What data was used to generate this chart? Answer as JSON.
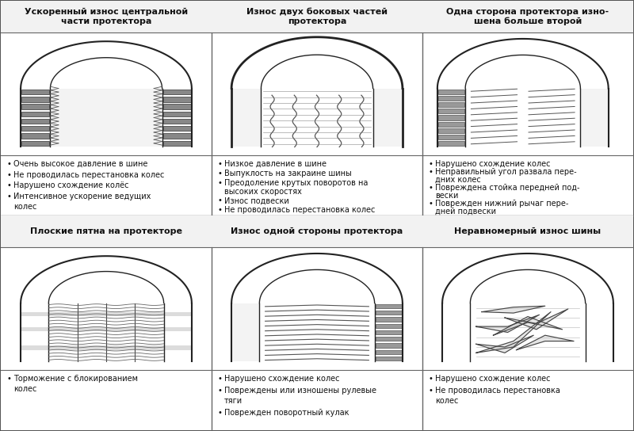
{
  "bg_color": "#e8e8e8",
  "cell_bg": "#ffffff",
  "border_color": "#666666",
  "headers": [
    "Ускоренный износ центральной\nчасти протектора",
    "Износ двух боковых частей\nпротектора",
    "Одна сторона протектора изно-\nшена больше второй",
    "Плоские пятна на протекторе",
    "Износ одной стороны протектора",
    "Неравномерный износ шины"
  ],
  "bullets": [
    [
      "Очень высокое давление в шине",
      "Не проводилась перестановка колес",
      "Нарушено схождение колёс",
      "Интенсивное ускорение ведущих\nколес"
    ],
    [
      "Низкое давление в шине",
      "Выпуклость на закраине шины",
      "Преодоление крутых поворотов на\nвысоких скоростях",
      "Износ подвески",
      "Не проводилась перестановка колес"
    ],
    [
      "Нарушено схождение колес",
      "Неправильный угол развала пере-\nдних колес",
      "Повреждена стойка передней под-\nвески",
      "Поврежден нижний рычаг пере-\nдней подвески"
    ],
    [
      "Торможение с блокированием\nколес"
    ],
    [
      "Нарушено схождение колес",
      "Повреждены или изношены рулевые\nтяги",
      "Поврежден поворотный кулак"
    ],
    [
      "Нарушено схождение колес",
      "Не проводилась перестановка\nколес"
    ]
  ],
  "title_fontsize": 8.0,
  "bullet_fontsize": 7.0
}
